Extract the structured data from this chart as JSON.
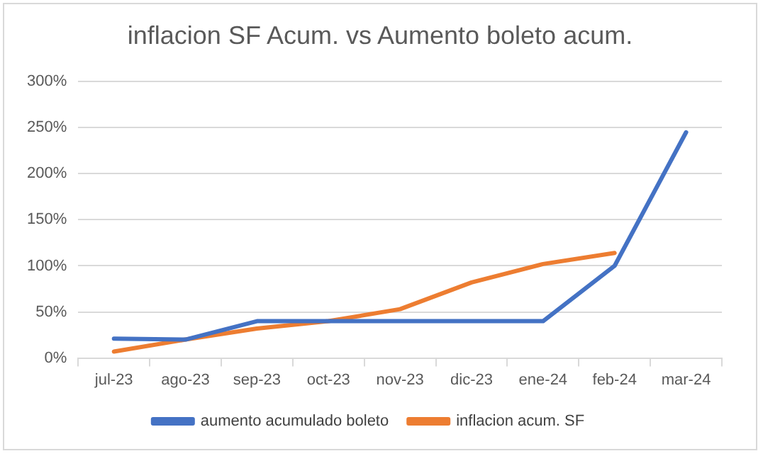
{
  "chart_data": {
    "type": "line",
    "title": "inflacion SF Acum. vs Aumento boleto acum.",
    "categories": [
      "jul-23",
      "ago-23",
      "sep-23",
      "oct-23",
      "nov-23",
      "dic-23",
      "ene-24",
      "feb-24",
      "mar-24"
    ],
    "series": [
      {
        "name": "aumento acumulado boleto",
        "color": "#4472c4",
        "values": [
          21,
          20,
          40,
          40,
          40,
          40,
          40,
          100,
          245
        ]
      },
      {
        "name": "inflacion acum. SF",
        "color": "#ed7d31",
        "values": [
          7,
          20,
          32,
          40,
          53,
          82,
          102,
          114,
          null
        ]
      }
    ],
    "ylim": [
      0,
      300
    ],
    "yticks": [
      {
        "value": 0,
        "label": "0%"
      },
      {
        "value": 50,
        "label": "50%"
      },
      {
        "value": 100,
        "label": "100%"
      },
      {
        "value": 150,
        "label": "150%"
      },
      {
        "value": 200,
        "label": "200%"
      },
      {
        "value": 250,
        "label": "250%"
      },
      {
        "value": 300,
        "label": "300%"
      }
    ],
    "grid": "y",
    "legend": "bottom",
    "marker": "none",
    "line_style": "solid"
  }
}
